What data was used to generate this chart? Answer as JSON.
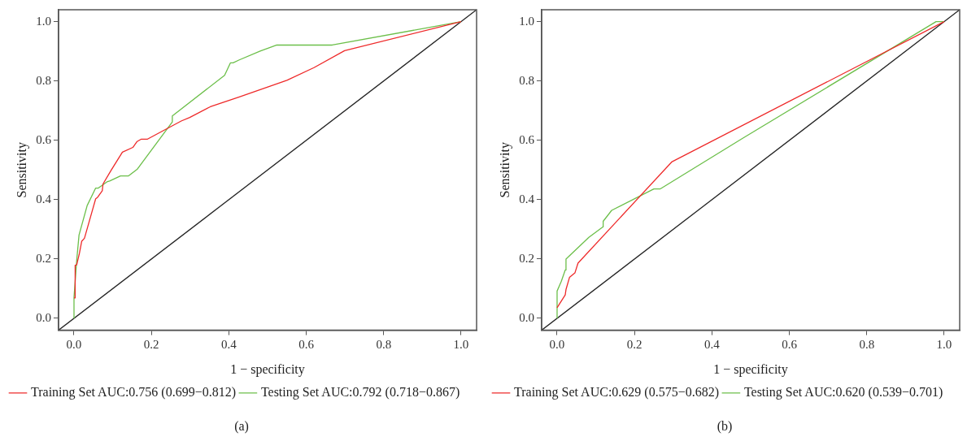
{
  "chart_data": [
    {
      "type": "line",
      "title": "(a)",
      "xlabel": "1 − specificity",
      "ylabel": "Sensitivity",
      "xlim": [
        -0.04,
        1.04
      ],
      "ylim": [
        -0.04,
        1.04
      ],
      "xticks": [
        {
          "value": 0,
          "label": "0.0"
        },
        {
          "value": 0.2,
          "label": "0.2"
        },
        {
          "value": 0.4,
          "label": "0.4"
        },
        {
          "value": 0.6,
          "label": "0.6"
        },
        {
          "value": 0.8,
          "label": "0.8"
        },
        {
          "value": 1,
          "label": "1.0"
        }
      ],
      "yticks": [
        {
          "value": 0,
          "label": "0.0"
        },
        {
          "value": 0.2,
          "label": "0.2"
        },
        {
          "value": 0.4,
          "label": "0.4"
        },
        {
          "value": 0.6,
          "label": "0.6"
        },
        {
          "value": 0.8,
          "label": "0.8"
        },
        {
          "value": 1,
          "label": "1.0"
        }
      ],
      "grid": false,
      "legend": "bottom",
      "marker": "none",
      "line_style": "solid",
      "series": [
        {
          "name": "Training Set AUC:0.756 (0.699−0.812)",
          "color": "#ee2a2a",
          "x": [
            0,
            0.003,
            0.003,
            0.007,
            0.014,
            0.02,
            0.027,
            0.056,
            0.061,
            0.073,
            0.075,
            0.095,
            0.125,
            0.152,
            0.163,
            0.174,
            0.19,
            0.277,
            0.299,
            0.352,
            0.427,
            0.55,
            0.62,
            0.699,
            1
          ],
          "values": [
            0.069,
            0.069,
            0.179,
            0.18,
            0.219,
            0.26,
            0.27,
            0.403,
            0.408,
            0.43,
            0.453,
            0.497,
            0.56,
            0.576,
            0.596,
            0.604,
            0.604,
            0.665,
            0.677,
            0.713,
            0.746,
            0.802,
            0.845,
            0.902,
            1
          ]
        },
        {
          "name": "Testing Set AUC:0.792 (0.718−0.867)",
          "color": "#6cbf4a",
          "x": [
            0,
            0,
            0.007,
            0.013,
            0.034,
            0.056,
            0.063,
            0.085,
            0.092,
            0.12,
            0.141,
            0.163,
            0.254,
            0.254,
            0.389,
            0.404,
            0.411,
            0.427,
            0.481,
            0.524,
            0.667,
            1
          ],
          "values": [
            0,
            0.07,
            0.196,
            0.281,
            0.38,
            0.439,
            0.439,
            0.46,
            0.463,
            0.48,
            0.48,
            0.502,
            0.662,
            0.682,
            0.819,
            0.861,
            0.861,
            0.871,
            0.901,
            0.921,
            0.921,
            1
          ]
        },
        {
          "color": "#222222",
          "x": [
            -0.04,
            1.04
          ],
          "values": [
            -0.04,
            1.04
          ]
        }
      ]
    },
    {
      "type": "line",
      "title": "(b)",
      "xlabel": "1 − specificity",
      "ylabel": "Sensitivity",
      "xlim": [
        -0.04,
        1.04
      ],
      "ylim": [
        -0.04,
        1.04
      ],
      "xticks": [
        {
          "value": 0,
          "label": "0.0"
        },
        {
          "value": 0.2,
          "label": "0.2"
        },
        {
          "value": 0.4,
          "label": "0.4"
        },
        {
          "value": 0.6,
          "label": "0.6"
        },
        {
          "value": 0.8,
          "label": "0.8"
        },
        {
          "value": 1,
          "label": "1.0"
        }
      ],
      "yticks": [
        {
          "value": 0,
          "label": "0.0"
        },
        {
          "value": 0.2,
          "label": "0.2"
        },
        {
          "value": 0.4,
          "label": "0.4"
        },
        {
          "value": 0.6,
          "label": "0.6"
        },
        {
          "value": 0.8,
          "label": "0.8"
        },
        {
          "value": 1,
          "label": "1.0"
        }
      ],
      "grid": false,
      "legend": "bottom",
      "marker": "none",
      "line_style": "solid",
      "series": [
        {
          "name": "Training Set AUC:0.629 (0.575−0.682)",
          "color": "#ee2a2a",
          "x": [
            0,
            0.021,
            0.023,
            0.032,
            0.046,
            0.054,
            0.296,
            1
          ],
          "values": [
            0.036,
            0.079,
            0.097,
            0.138,
            0.153,
            0.186,
            0.527,
            1
          ]
        },
        {
          "name": "Testing Set AUC:0.620 (0.539−0.701)",
          "color": "#6cbf4a",
          "x": [
            0,
            0,
            0.011,
            0.021,
            0.023,
            0.023,
            0.082,
            0.118,
            0.119,
            0.141,
            0.25,
            0.266,
            0.482,
            0.979,
            1
          ],
          "values": [
            0,
            0.092,
            0.125,
            0.163,
            0.163,
            0.2,
            0.273,
            0.308,
            0.327,
            0.364,
            0.436,
            0.436,
            0.609,
            1,
            1
          ]
        },
        {
          "color": "#222222",
          "x": [
            -0.04,
            1.04
          ],
          "values": [
            -0.04,
            1.04
          ]
        }
      ]
    }
  ]
}
